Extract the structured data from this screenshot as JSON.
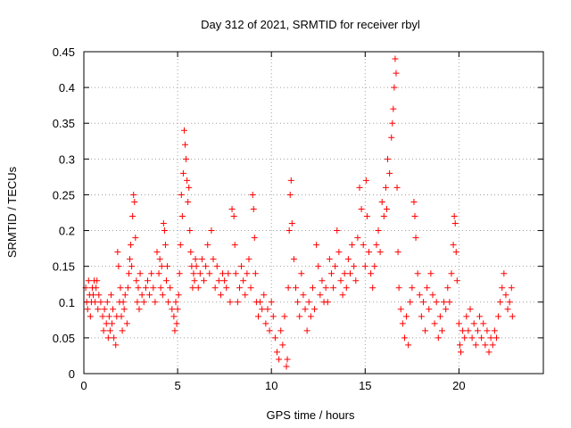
{
  "chart_data": {
    "type": "scatter",
    "title": "Day 312 of 2021, SRMTID for receiver rbyl",
    "xlabel": "GPS time / hours",
    "ylabel": "SRMTID / TECUs",
    "xlim": [
      0,
      24.5
    ],
    "ylim": [
      0,
      0.45
    ],
    "xticks": [
      0,
      5,
      10,
      15,
      20
    ],
    "yticks": [
      0,
      0.05,
      0.1,
      0.15,
      0.2,
      0.25,
      0.3,
      0.35,
      0.4,
      0.45
    ],
    "xtick_labels": [
      "0",
      "5",
      "10",
      "15",
      "20"
    ],
    "ytick_labels": [
      "0",
      "0.05",
      "0.1",
      "0.15",
      "0.2",
      "0.25",
      "0.3",
      "0.35",
      "0.4",
      "0.45"
    ],
    "grid": true,
    "marker": "+",
    "color": "#ff0000",
    "series": [
      {
        "name": "SRMTID",
        "points": [
          [
            0.1,
            0.12
          ],
          [
            0.15,
            0.1
          ],
          [
            0.2,
            0.09
          ],
          [
            0.25,
            0.13
          ],
          [
            0.3,
            0.11
          ],
          [
            0.35,
            0.08
          ],
          [
            0.4,
            0.1
          ],
          [
            0.45,
            0.12
          ],
          [
            0.5,
            0.11
          ],
          [
            0.55,
            0.13
          ],
          [
            0.6,
            0.1
          ],
          [
            0.65,
            0.12
          ],
          [
            0.7,
            0.13
          ],
          [
            0.75,
            0.09
          ],
          [
            0.8,
            0.11
          ],
          [
            0.9,
            0.1
          ],
          [
            1.0,
            0.08
          ],
          [
            1.05,
            0.06
          ],
          [
            1.1,
            0.09
          ],
          [
            1.2,
            0.07
          ],
          [
            1.25,
            0.1
          ],
          [
            1.3,
            0.05
          ],
          [
            1.35,
            0.08
          ],
          [
            1.4,
            0.06
          ],
          [
            1.45,
            0.11
          ],
          [
            1.5,
            0.07
          ],
          [
            1.55,
            0.09
          ],
          [
            1.6,
            0.05
          ],
          [
            1.7,
            0.04
          ],
          [
            1.75,
            0.08
          ],
          [
            1.8,
            0.17
          ],
          [
            1.85,
            0.15
          ],
          [
            1.9,
            0.1
          ],
          [
            1.95,
            0.12
          ],
          [
            2.0,
            0.08
          ],
          [
            2.05,
            0.06
          ],
          [
            2.1,
            0.1
          ],
          [
            2.15,
            0.09
          ],
          [
            2.2,
            0.11
          ],
          [
            2.3,
            0.07
          ],
          [
            2.35,
            0.12
          ],
          [
            2.4,
            0.14
          ],
          [
            2.45,
            0.16
          ],
          [
            2.5,
            0.18
          ],
          [
            2.55,
            0.15
          ],
          [
            2.6,
            0.22
          ],
          [
            2.65,
            0.25
          ],
          [
            2.7,
            0.24
          ],
          [
            2.75,
            0.19
          ],
          [
            2.8,
            0.13
          ],
          [
            2.85,
            0.1
          ],
          [
            2.9,
            0.12
          ],
          [
            2.95,
            0.09
          ],
          [
            3.0,
            0.14
          ],
          [
            3.1,
            0.11
          ],
          [
            3.2,
            0.1
          ],
          [
            3.3,
            0.12
          ],
          [
            3.4,
            0.13
          ],
          [
            3.5,
            0.11
          ],
          [
            3.6,
            0.14
          ],
          [
            3.7,
            0.12
          ],
          [
            3.8,
            0.1
          ],
          [
            3.9,
            0.17
          ],
          [
            4.0,
            0.14
          ],
          [
            4.05,
            0.16
          ],
          [
            4.1,
            0.12
          ],
          [
            4.15,
            0.15
          ],
          [
            4.2,
            0.11
          ],
          [
            4.25,
            0.21
          ],
          [
            4.3,
            0.2
          ],
          [
            4.35,
            0.18
          ],
          [
            4.4,
            0.13
          ],
          [
            4.45,
            0.15
          ],
          [
            4.5,
            0.1
          ],
          [
            4.6,
            0.12
          ],
          [
            4.7,
            0.09
          ],
          [
            4.8,
            0.08
          ],
          [
            4.85,
            0.06
          ],
          [
            4.9,
            0.1
          ],
          [
            4.95,
            0.07
          ],
          [
            5.0,
            0.09
          ],
          [
            5.05,
            0.11
          ],
          [
            5.1,
            0.14
          ],
          [
            5.15,
            0.18
          ],
          [
            5.2,
            0.25
          ],
          [
            5.25,
            0.22
          ],
          [
            5.3,
            0.28
          ],
          [
            5.35,
            0.34
          ],
          [
            5.4,
            0.32
          ],
          [
            5.45,
            0.3
          ],
          [
            5.5,
            0.27
          ],
          [
            5.55,
            0.24
          ],
          [
            5.6,
            0.26
          ],
          [
            5.65,
            0.2
          ],
          [
            5.7,
            0.17
          ],
          [
            5.75,
            0.15
          ],
          [
            5.8,
            0.12
          ],
          [
            5.85,
            0.14
          ],
          [
            5.9,
            0.13
          ],
          [
            5.95,
            0.16
          ],
          [
            6.0,
            0.15
          ],
          [
            6.1,
            0.12
          ],
          [
            6.2,
            0.14
          ],
          [
            6.3,
            0.16
          ],
          [
            6.4,
            0.13
          ],
          [
            6.5,
            0.15
          ],
          [
            6.6,
            0.18
          ],
          [
            6.7,
            0.14
          ],
          [
            6.8,
            0.2
          ],
          [
            6.9,
            0.16
          ],
          [
            7.0,
            0.12
          ],
          [
            7.1,
            0.15
          ],
          [
            7.2,
            0.13
          ],
          [
            7.3,
            0.11
          ],
          [
            7.4,
            0.14
          ],
          [
            7.5,
            0.13
          ],
          [
            7.6,
            0.12
          ],
          [
            7.7,
            0.14
          ],
          [
            7.8,
            0.1
          ],
          [
            7.9,
            0.23
          ],
          [
            8.0,
            0.22
          ],
          [
            8.05,
            0.18
          ],
          [
            8.1,
            0.14
          ],
          [
            8.2,
            0.1
          ],
          [
            8.3,
            0.12
          ],
          [
            8.4,
            0.15
          ],
          [
            8.5,
            0.13
          ],
          [
            8.6,
            0.11
          ],
          [
            8.7,
            0.14
          ],
          [
            8.8,
            0.16
          ],
          [
            8.9,
            0.12
          ],
          [
            9.0,
            0.25
          ],
          [
            9.05,
            0.23
          ],
          [
            9.1,
            0.19
          ],
          [
            9.15,
            0.14
          ],
          [
            9.2,
            0.1
          ],
          [
            9.3,
            0.08
          ],
          [
            9.4,
            0.1
          ],
          [
            9.5,
            0.09
          ],
          [
            9.6,
            0.11
          ],
          [
            9.7,
            0.07
          ],
          [
            9.8,
            0.09
          ],
          [
            9.9,
            0.06
          ],
          [
            10.0,
            0.1
          ],
          [
            10.1,
            0.08
          ],
          [
            10.2,
            0.05
          ],
          [
            10.3,
            0.03
          ],
          [
            10.4,
            0.02
          ],
          [
            10.5,
            0.06
          ],
          [
            10.6,
            0.04
          ],
          [
            10.7,
            0.08
          ],
          [
            10.8,
            0.01
          ],
          [
            10.85,
            0.02
          ],
          [
            10.9,
            0.12
          ],
          [
            10.95,
            0.2
          ],
          [
            11.0,
            0.25
          ],
          [
            11.05,
            0.27
          ],
          [
            11.1,
            0.21
          ],
          [
            11.2,
            0.16
          ],
          [
            11.3,
            0.12
          ],
          [
            11.4,
            0.1
          ],
          [
            11.5,
            0.08
          ],
          [
            11.6,
            0.14
          ],
          [
            11.7,
            0.11
          ],
          [
            11.8,
            0.09
          ],
          [
            11.9,
            0.06
          ],
          [
            12.0,
            0.1
          ],
          [
            12.1,
            0.08
          ],
          [
            12.2,
            0.12
          ],
          [
            12.3,
            0.09
          ],
          [
            12.4,
            0.18
          ],
          [
            12.5,
            0.15
          ],
          [
            12.6,
            0.11
          ],
          [
            12.7,
            0.13
          ],
          [
            12.8,
            0.1
          ],
          [
            12.9,
            0.12
          ],
          [
            13.0,
            0.1
          ],
          [
            13.1,
            0.16
          ],
          [
            13.2,
            0.14
          ],
          [
            13.3,
            0.12
          ],
          [
            13.4,
            0.15
          ],
          [
            13.5,
            0.2
          ],
          [
            13.6,
            0.17
          ],
          [
            13.7,
            0.13
          ],
          [
            13.8,
            0.11
          ],
          [
            13.9,
            0.14
          ],
          [
            14.0,
            0.12
          ],
          [
            14.1,
            0.16
          ],
          [
            14.2,
            0.14
          ],
          [
            14.3,
            0.18
          ],
          [
            14.4,
            0.15
          ],
          [
            14.5,
            0.13
          ],
          [
            14.6,
            0.19
          ],
          [
            14.7,
            0.26
          ],
          [
            14.8,
            0.23
          ],
          [
            14.9,
            0.18
          ],
          [
            15.0,
            0.15
          ],
          [
            15.05,
            0.27
          ],
          [
            15.1,
            0.22
          ],
          [
            15.2,
            0.17
          ],
          [
            15.3,
            0.14
          ],
          [
            15.4,
            0.12
          ],
          [
            15.5,
            0.15
          ],
          [
            15.6,
            0.18
          ],
          [
            15.7,
            0.2
          ],
          [
            15.8,
            0.17
          ],
          [
            15.9,
            0.24
          ],
          [
            16.0,
            0.22
          ],
          [
            16.1,
            0.26
          ],
          [
            16.15,
            0.23
          ],
          [
            16.2,
            0.3
          ],
          [
            16.3,
            0.28
          ],
          [
            16.4,
            0.33
          ],
          [
            16.45,
            0.35
          ],
          [
            16.5,
            0.37
          ],
          [
            16.55,
            0.4
          ],
          [
            16.6,
            0.44
          ],
          [
            16.65,
            0.42
          ],
          [
            16.7,
            0.26
          ],
          [
            16.75,
            0.17
          ],
          [
            16.8,
            0.12
          ],
          [
            16.9,
            0.09
          ],
          [
            17.0,
            0.07
          ],
          [
            17.1,
            0.05
          ],
          [
            17.2,
            0.08
          ],
          [
            17.3,
            0.04
          ],
          [
            17.4,
            0.1
          ],
          [
            17.5,
            0.12
          ],
          [
            17.6,
            0.24
          ],
          [
            17.65,
            0.22
          ],
          [
            17.7,
            0.19
          ],
          [
            17.8,
            0.14
          ],
          [
            17.9,
            0.11
          ],
          [
            18.0,
            0.08
          ],
          [
            18.1,
            0.1
          ],
          [
            18.2,
            0.06
          ],
          [
            18.3,
            0.12
          ],
          [
            18.4,
            0.09
          ],
          [
            18.5,
            0.14
          ],
          [
            18.6,
            0.11
          ],
          [
            18.7,
            0.07
          ],
          [
            18.8,
            0.1
          ],
          [
            18.9,
            0.05
          ],
          [
            19.0,
            0.08
          ],
          [
            19.1,
            0.06
          ],
          [
            19.2,
            0.1
          ],
          [
            19.3,
            0.09
          ],
          [
            19.4,
            0.12
          ],
          [
            19.5,
            0.1
          ],
          [
            19.6,
            0.14
          ],
          [
            19.7,
            0.18
          ],
          [
            19.75,
            0.22
          ],
          [
            19.8,
            0.21
          ],
          [
            19.85,
            0.17
          ],
          [
            19.9,
            0.13
          ],
          [
            20.0,
            0.07
          ],
          [
            20.05,
            0.04
          ],
          [
            20.1,
            0.03
          ],
          [
            20.2,
            0.06
          ],
          [
            20.3,
            0.05
          ],
          [
            20.4,
            0.08
          ],
          [
            20.5,
            0.06
          ],
          [
            20.6,
            0.09
          ],
          [
            20.7,
            0.05
          ],
          [
            20.8,
            0.07
          ],
          [
            20.9,
            0.04
          ],
          [
            21.0,
            0.06
          ],
          [
            21.1,
            0.08
          ],
          [
            21.2,
            0.05
          ],
          [
            21.3,
            0.07
          ],
          [
            21.4,
            0.04
          ],
          [
            21.5,
            0.06
          ],
          [
            21.6,
            0.03
          ],
          [
            21.7,
            0.05
          ],
          [
            21.8,
            0.04
          ],
          [
            21.9,
            0.06
          ],
          [
            22.0,
            0.05
          ],
          [
            22.1,
            0.08
          ],
          [
            22.2,
            0.1
          ],
          [
            22.3,
            0.12
          ],
          [
            22.4,
            0.14
          ],
          [
            22.5,
            0.11
          ],
          [
            22.6,
            0.09
          ],
          [
            22.7,
            0.1
          ],
          [
            22.8,
            0.12
          ],
          [
            22.85,
            0.08
          ]
        ]
      }
    ]
  }
}
